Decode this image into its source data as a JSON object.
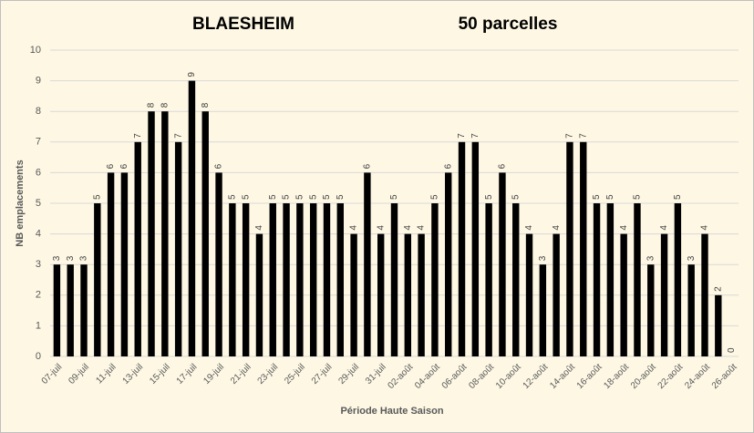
{
  "chart_data": {
    "type": "bar",
    "title": "BLAESHEIM",
    "subtitle": "50 parcelles",
    "x_label": "Période Haute Saison",
    "y_label": "NB emplacements",
    "categories": [
      "07-juil",
      null,
      "09-juil",
      null,
      "11-juil",
      null,
      "13-juil",
      null,
      "15-juil",
      null,
      "17-juil",
      null,
      "19-juil",
      null,
      "21-juil",
      null,
      "23-juil",
      null,
      "25-juil",
      null,
      "27-juil",
      null,
      "29-juil",
      null,
      "31-juil",
      null,
      "02-août",
      null,
      "04-août",
      null,
      "06-août",
      null,
      "08-août",
      null,
      "10-août",
      null,
      "12-août",
      null,
      "14-août",
      null,
      "16-août",
      null,
      "18-août",
      null,
      "20-août",
      null,
      "22-août",
      null,
      "24-août",
      null,
      "26-août"
    ],
    "values": [
      3,
      3,
      3,
      5,
      6,
      6,
      7,
      8,
      8,
      7,
      9,
      8,
      6,
      5,
      5,
      4,
      5,
      5,
      5,
      5,
      5,
      5,
      4,
      6,
      4,
      5,
      4,
      4,
      5,
      6,
      7,
      7,
      5,
      6,
      5,
      4,
      3,
      4,
      7,
      7,
      5,
      5,
      4,
      5,
      3,
      4,
      5,
      3,
      4,
      2,
      0
    ],
    "color": "#000000",
    "ylim": [
      0,
      10
    ],
    "yticks": [
      0,
      1,
      2,
      3,
      4,
      5,
      6,
      7,
      8,
      9,
      10
    ],
    "grid": true
  }
}
